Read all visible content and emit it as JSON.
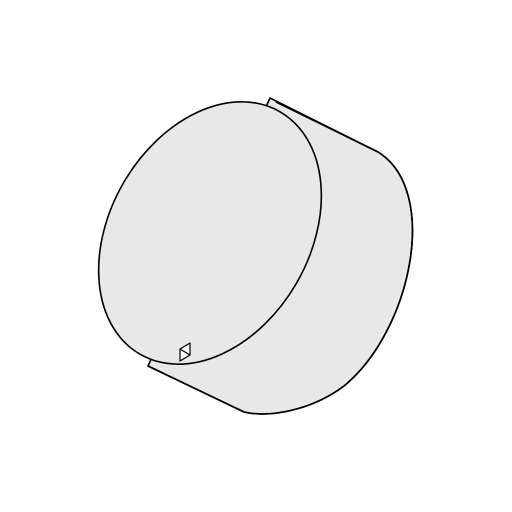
{
  "model": {
    "shape": "cylinder",
    "projection": "isometric",
    "fill_color": "#e8e8e8",
    "edge_color": "#000000",
    "background_color": "#ffffff",
    "marker": "triangle-vertex-marker"
  }
}
